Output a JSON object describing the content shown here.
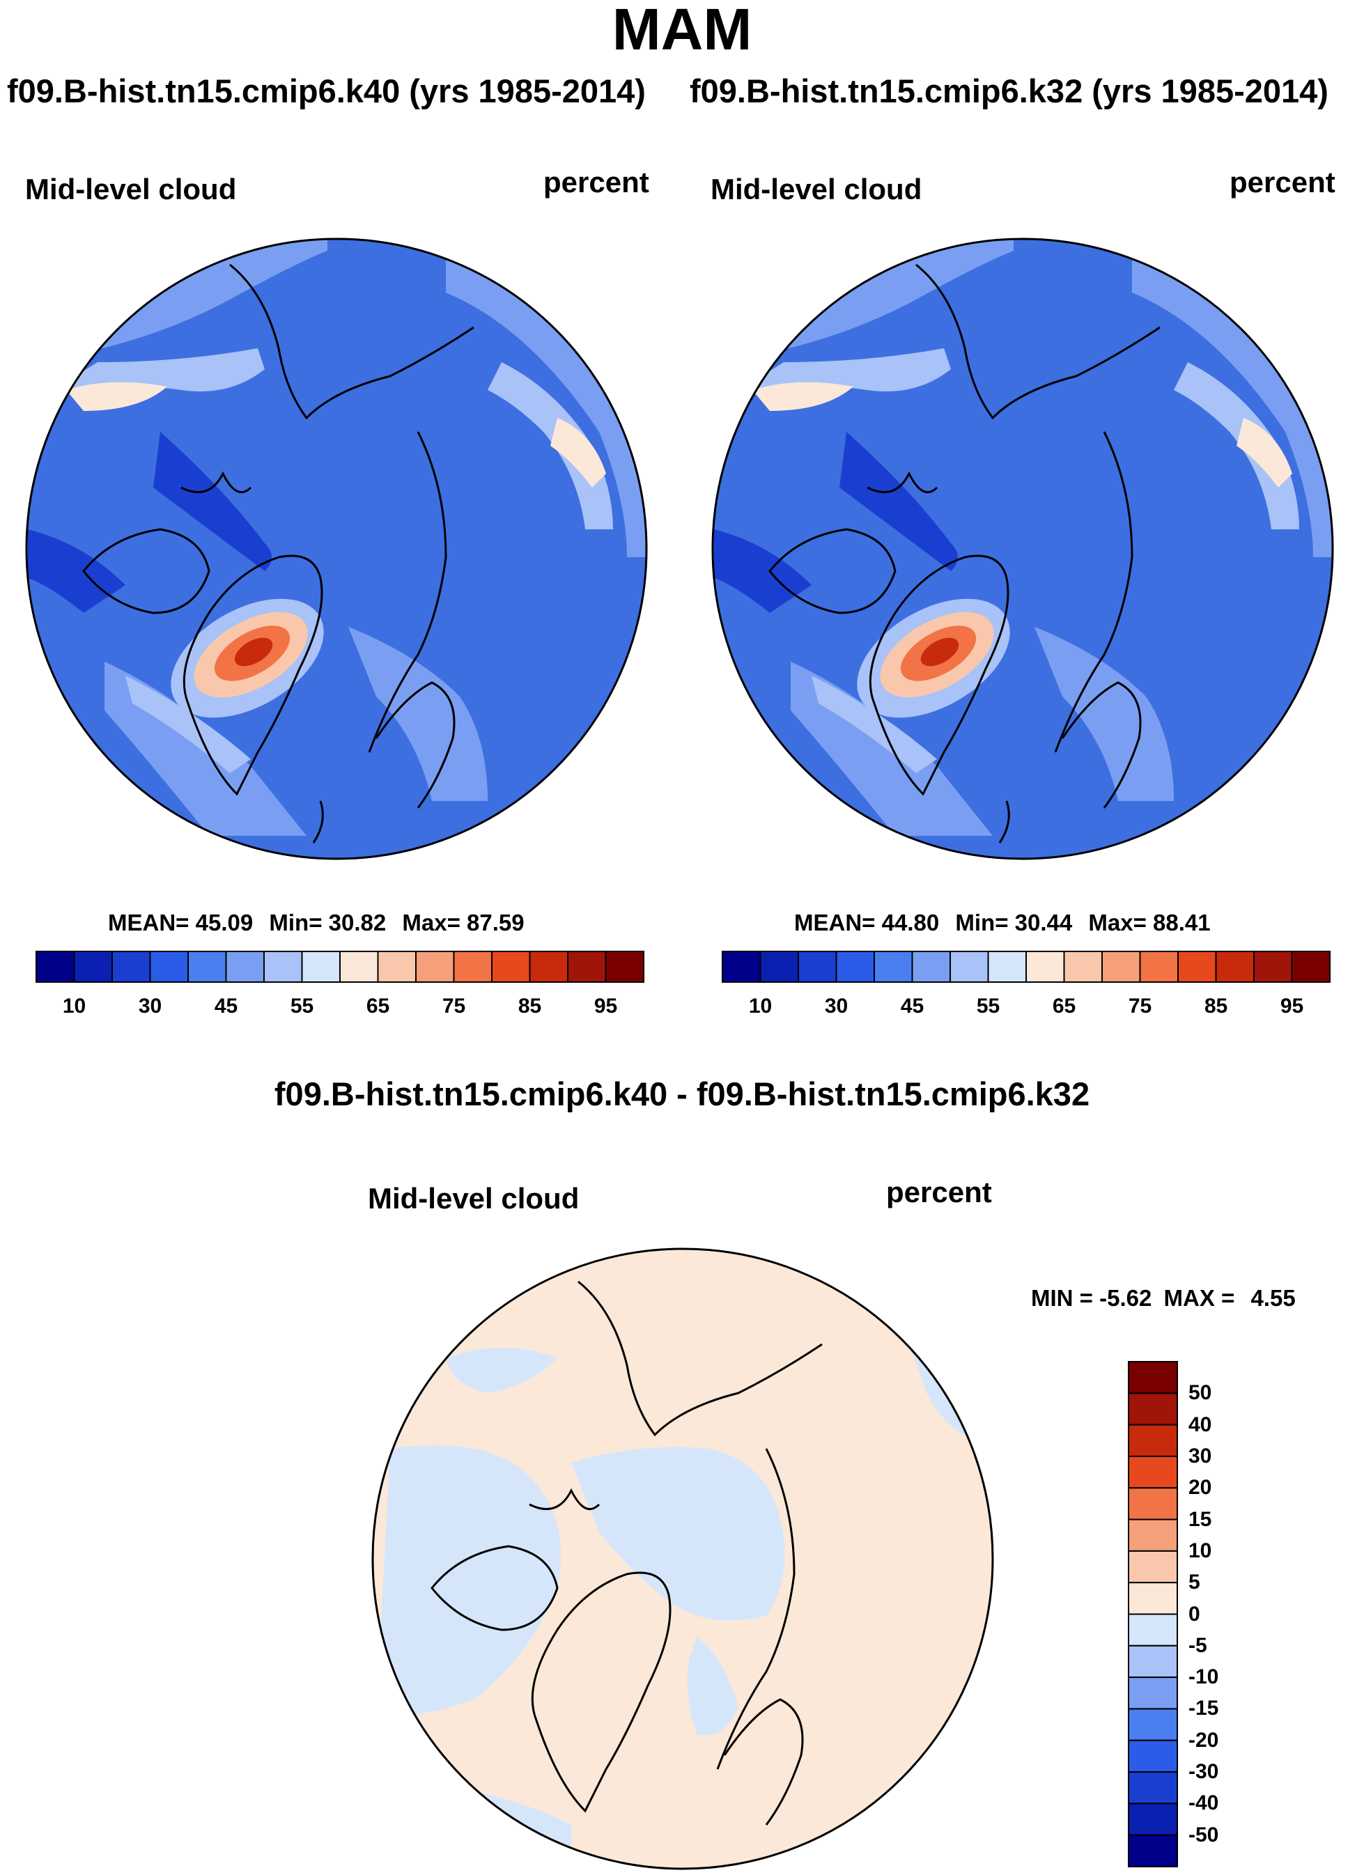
{
  "page": {
    "main_title": "MAM",
    "run_title_left": "f09.B-hist.tn15.cmip6.k40 (yrs 1985-2014)",
    "run_title_right": "f09.B-hist.tn15.cmip6.k32 (yrs 1985-2014)",
    "diff_title": "f09.B-hist.tn15.cmip6.k40 - f09.B-hist.tn15.cmip6.k32"
  },
  "colors": {
    "abs_levels": [
      "#00008b",
      "#0a20b0",
      "#1a3fd0",
      "#2a5ce8",
      "#4a7ff0",
      "#7a9ff2",
      "#a9c2f7",
      "#d6e6fa",
      "#fbe8d8",
      "#f9c8ac",
      "#f5a07a",
      "#f27346",
      "#e8481d",
      "#c82b0b",
      "#a0140a",
      "#7a0000"
    ],
    "diff_levels": [
      "#00008b",
      "#0a20b0",
      "#1a3fd0",
      "#2a5ce8",
      "#4a7ff0",
      "#7a9ff2",
      "#a9c2f7",
      "#d6e6fa",
      "#fbe8d8",
      "#f9c8ac",
      "#f5a07a",
      "#f27346",
      "#e8481d",
      "#c82b0b",
      "#a0140a",
      "#7a0000"
    ],
    "map_ocean_mid": "#3d6fe0",
    "diff_blue": "#d6e6fa",
    "diff_peach": "#fbe8d8"
  },
  "chart_data": [
    {
      "type": "heatmap",
      "projection": "north-polar-stereographic",
      "variable": "Mid-level cloud",
      "units": "percent",
      "case": "f09.B-hist.tn15.cmip6.k40 (yrs 1985-2014)",
      "stats": {
        "mean_label": "MEAN=",
        "mean": "45.09",
        "min_label": "Min=",
        "min": "30.82",
        "max_label": "Max=",
        "max": "87.59"
      },
      "colorbar_ticks": [
        "10",
        "30",
        "45",
        "55",
        "65",
        "75",
        "85",
        "95"
      ],
      "legend_placement": "bottom"
    },
    {
      "type": "heatmap",
      "projection": "north-polar-stereographic",
      "variable": "Mid-level cloud",
      "units": "percent",
      "case": "f09.B-hist.tn15.cmip6.k32 (yrs 1985-2014)",
      "stats": {
        "mean_label": "MEAN=",
        "mean": "44.80",
        "min_label": "Min=",
        "min": "30.44",
        "max_label": "Max=",
        "max": "88.41"
      },
      "colorbar_ticks": [
        "10",
        "30",
        "45",
        "55",
        "65",
        "75",
        "85",
        "95"
      ],
      "legend_placement": "bottom"
    },
    {
      "type": "heatmap",
      "projection": "north-polar-stereographic",
      "variable": "Mid-level cloud",
      "units": "percent",
      "case": "f09.B-hist.tn15.cmip6.k40 - f09.B-hist.tn15.cmip6.k32",
      "stats": {
        "min_label": "MIN =",
        "min": "-5.62",
        "max_label": "MAX =",
        "max": "4.55"
      },
      "colorbar_ticks": [
        "50",
        "40",
        "30",
        "20",
        "15",
        "10",
        "5",
        "0",
        "-5",
        "-10",
        "-15",
        "-20",
        "-30",
        "-40",
        "-50"
      ],
      "legend_placement": "right"
    }
  ]
}
